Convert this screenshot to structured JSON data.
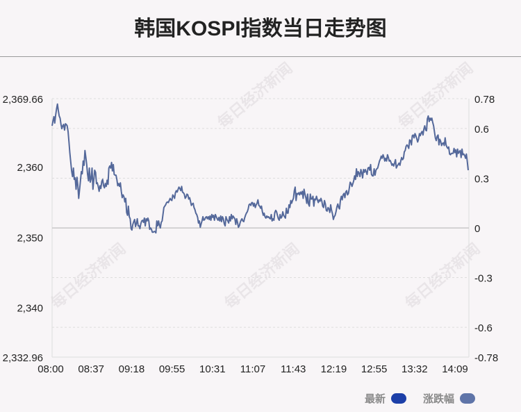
{
  "title": "韩国KOSPI指数当日走势图",
  "watermark": "每日经济新闻",
  "legend": [
    {
      "label": "最新",
      "color": "#1c3fa8"
    },
    {
      "label": "涨跌幅",
      "color": "#5f74a8"
    }
  ],
  "colors": {
    "line": "#54689a",
    "baseline": "#c8c8c8",
    "grid": "#dddddd",
    "axis_text": "#222222"
  },
  "chart_data": {
    "type": "line",
    "y_left_ticks": [
      "2,369.66",
      "2,360",
      "2,350",
      "2,340",
      "2,332.96"
    ],
    "y_left_values": [
      2369.66,
      2360,
      2350,
      2340,
      2332.96
    ],
    "y_right_ticks": [
      "0.78",
      "0.6",
      "0.3",
      "0",
      "-0.3",
      "-0.6",
      "-0.78"
    ],
    "y_right_values": [
      0.78,
      0.6,
      0.3,
      0,
      -0.3,
      -0.6,
      -0.78
    ],
    "x_ticks": [
      "08:00",
      "08:37",
      "09:18",
      "09:55",
      "10:31",
      "11:07",
      "11:43",
      "12:19",
      "12:55",
      "13:32",
      "14:09"
    ],
    "ylim": [
      2332.96,
      2369.66
    ],
    "baseline": 2351.3,
    "series": [
      {
        "values": [
          2365.8,
          2366.5,
          2367.1,
          2366.2,
          2367.3,
          2368.2,
          2368.9,
          2368.0,
          2367.2,
          2366.9,
          2366.0,
          2365.4,
          2365.8,
          2366.0,
          2365.2,
          2366.1,
          2366.0,
          2365.8,
          2365.0,
          2363.5,
          2362.0,
          2360.7,
          2359.4,
          2358.6,
          2359.8,
          2358.2,
          2358.4,
          2356.8,
          2358.5,
          2357.4,
          2355.5,
          2356.8,
          2358.1,
          2359.3,
          2359.0,
          2360.8,
          2360.2,
          2362.3,
          2361.4,
          2360.3,
          2358.9,
          2358.0,
          2359.8,
          2357.8,
          2358.3,
          2359.8,
          2356.8,
          2358.1,
          2359.5,
          2359.2,
          2357.6,
          2357.7,
          2357.2,
          2356.5,
          2357.3,
          2356.9,
          2357.9,
          2358.2,
          2357.3,
          2357.0,
          2357.6,
          2357.2,
          2358.1,
          2357.5,
          2359.8,
          2360.1,
          2359.8,
          2360.6,
          2359.4,
          2360.3,
          2358.9,
          2358.8,
          2358.8,
          2358.2,
          2357.3,
          2357.6,
          2357.2,
          2357.7,
          2356.5,
          2355.6,
          2356.0,
          2355.7,
          2355.0,
          2355.5,
          2353.5,
          2353.1,
          2354.4,
          2352.9,
          2352.6,
          2351.2,
          2351.0,
          2351.8,
          2352.2,
          2352.5,
          2351.5,
          2351.9,
          2352.6,
          2351.6,
          2351.6,
          2351.2,
          2351.9,
          2352.3,
          2352.4,
          2352.1,
          2352.7,
          2351.6,
          2352.6,
          2352.3,
          2352.7,
          2352.3,
          2351.1,
          2351.3,
          2351.1,
          2350.7,
          2350.7,
          2350.8,
          2350.8,
          2350.6,
          2352.3,
          2351.6,
          2352.3,
          2351.7,
          2351.3,
          2352.1,
          2352.3,
          2353.2,
          2354.2,
          2354.4,
          2354.6,
          2354.9,
          2355.0,
          2354.9,
          2355.2,
          2355.5,
          2355.3,
          2355.2,
          2356.0,
          2355.8,
          2355.5,
          2356.3,
          2356.6,
          2356.4,
          2356.8,
          2357.1,
          2356.9,
          2356.6,
          2357.2,
          2356.4,
          2356.3,
          2356.1,
          2355.5,
          2355.7,
          2356.1,
          2356.0,
          2355.4,
          2355.6,
          2355.1,
          2354.5,
          2354.7,
          2354.8,
          2354.2,
          2353.9,
          2353.4,
          2353.2,
          2352.8,
          2352.0,
          2352.3,
          2351.4,
          2351.9,
          2352.3,
          2352.9,
          2352.4,
          2352.5,
          2352.8,
          2352.9,
          2352.6,
          2352.9,
          2352.5,
          2353.0,
          2352.4,
          2353.2,
          2352.8,
          2353.1,
          2352.4,
          2353.2,
          2352.9,
          2352.6,
          2352.4,
          2352.8,
          2352.3,
          2353.0,
          2352.2,
          2352.9,
          2352.6,
          2351.9,
          2351.6,
          2352.9,
          2352.5,
          2352.3,
          2352.0,
          2352.9,
          2352.3,
          2353.2,
          2352.6,
          2353.0,
          2352.8,
          2352.6,
          2351.8,
          2352.6,
          2352.1,
          2351.4,
          2351.6,
          2352.1,
          2352.4,
          2352.6,
          2352.3,
          2352.2,
          2352.7,
          2353.1,
          2353.4,
          2353.6,
          2354.0,
          2354.6,
          2354.7,
          2354.5,
          2354.9,
          2354.9,
          2354.4,
          2354.8,
          2354.2,
          2354.6,
          2354.8,
          2355.3,
          2354.5,
          2354.4,
          2354.1,
          2354.4,
          2353.6,
          2353.1,
          2353.4,
          2352.9,
          2352.7,
          2353.0,
          2352.8,
          2352.9,
          2352.7,
          2352.6,
          2353.2,
          2352.3,
          2352.6,
          2352.4,
          2353.5,
          2353.8,
          2353.6,
          2353.1,
          2352.6,
          2352.4,
          2353.2,
          2352.7,
          2352.9,
          2353.6,
          2353.1,
          2352.9,
          2352.7,
          2354.1,
          2353.4,
          2353.4,
          2354.6,
          2354.2,
          2355.2,
          2354.8,
          2355.2,
          2355.5,
          2356.6,
          2357.1,
          2355.2,
          2356.2,
          2356.1,
          2356.3,
          2356.0,
          2356.4,
          2356.1,
          2356.5,
          2355.5,
          2356.8,
          2356.1,
          2355.6,
          2354.8,
          2356.1,
          2354.7,
          2354.4,
          2356.1,
          2355.4,
          2355.4,
          2355.8,
          2354.4,
          2355.4,
          2355.3,
          2355.8,
          2355.3,
          2354.9,
          2355.3,
          2355.1,
          2355.5,
          2355.1,
          2354.4,
          2354.2,
          2355.2,
          2354.7,
          2353.8,
          2353.7,
          2354.2,
          2354.0,
          2353.5,
          2354.6,
          2353.8,
          2353.3,
          2352.5,
          2352.9,
          2353.1,
          2353.6,
          2354.3,
          2354.7,
          2354.2,
          2354.0,
          2355.3,
          2355.8,
          2355.3,
          2356.0,
          2356.2,
          2355.6,
          2356.4,
          2356.6,
          2356.0,
          2356.2,
          2357.0,
          2357.8,
          2357.6,
          2357.2,
          2357.6,
          2358.0,
          2358.7,
          2358.2,
          2359.7,
          2358.6,
          2359.3,
          2359.1,
          2358.6,
          2359.6,
          2359.2,
          2358.4,
          2359.6,
          2359.2,
          2359.6,
          2359.3,
          2358.9,
          2359.8,
          2359.9,
          2359.5,
          2360.3,
          2358.9,
          2358.7,
          2358.7,
          2359.7,
          2358.8,
          2359.5,
          2359.7,
          2359.8,
          2360.3,
          2360.8,
          2361.1,
          2361.5,
          2361.2,
          2361.7,
          2361.3,
          2360.8,
          2361.2,
          2360.8,
          2361.7,
          2361.3,
          2360.8,
          2360.9,
          2360.6,
          2360.2,
          2360.4,
          2360.1,
          2360.5,
          2361.0,
          2359.8,
          2360.1,
          2360.3,
          2360.5,
          2360.2,
          2360.8,
          2361.3,
          2361.0,
          2361.2,
          2362.1,
          2362.3,
          2362.9,
          2363.1,
          2362.9,
          2362.6,
          2363.8,
          2363.7,
          2363.1,
          2364.4,
          2364.5,
          2364.1,
          2364.7,
          2364.4,
          2364.0,
          2363.5,
          2363.9,
          2364.7,
          2364.4,
          2364.8,
          2365.0,
          2364.5,
          2365.3,
          2365.8,
          2365.2,
          2365.1,
          2366.8,
          2367.2,
          2366.4,
          2366.9,
          2366.6,
          2366.9,
          2366.3,
          2365.8,
          2364.9,
          2364.1,
          2363.7,
          2364.3,
          2364.5,
          2363.1,
          2363.9,
          2363.6,
          2363.0,
          2363.3,
          2363.4,
          2363.0,
          2364.1,
          2363.1,
          2362.8,
          2362.6,
          2362.8,
          2361.8,
          2361.7,
          2361.9,
          2361.9,
          2361.9,
          2362.6,
          2362.0,
          2362.4,
          2361.4,
          2362.5,
          2361.9,
          2362.1,
          2362.3,
          2361.3,
          2362.5,
          2361.7,
          2361.8,
          2361.6,
          2361.2,
          2361.8,
          2360.7,
          2359.5
        ]
      }
    ]
  }
}
